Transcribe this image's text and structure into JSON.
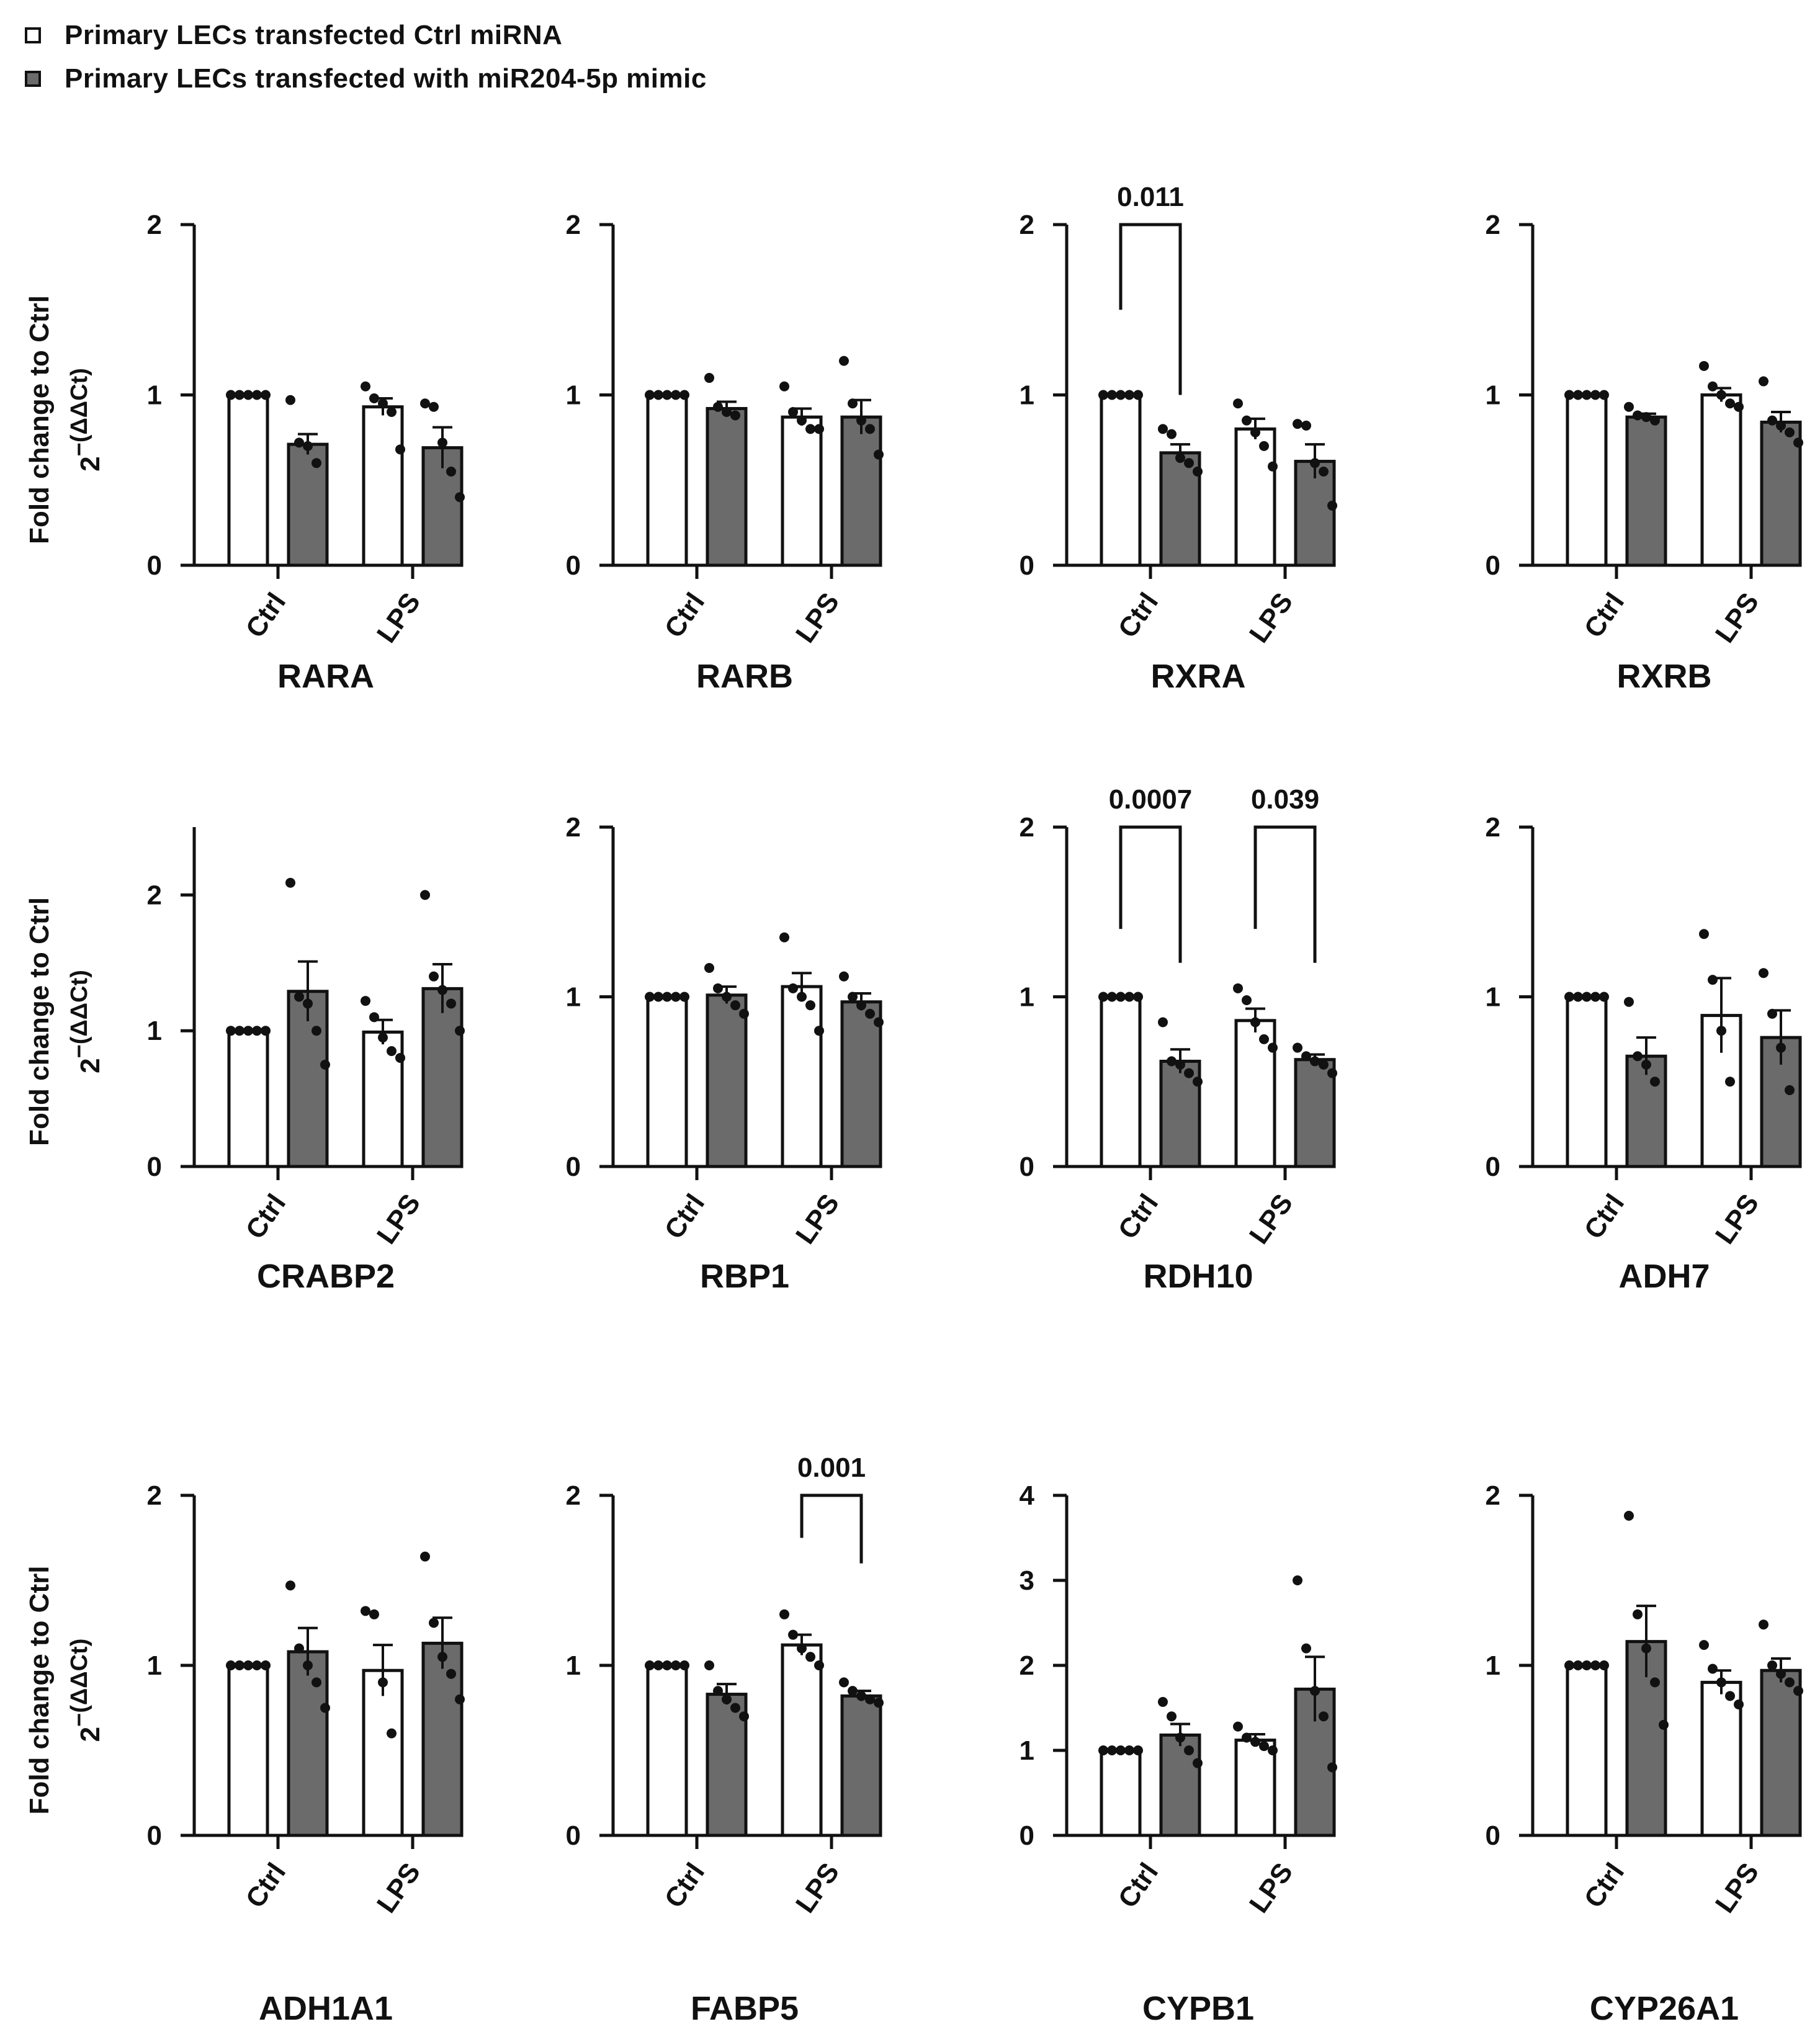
{
  "legend": {
    "items": [
      {
        "label": "Primary LECs transfected Ctrl miRNA",
        "color": "#ffffff"
      },
      {
        "label": "Primary LECs transfected with miR204-5p mimic",
        "color": "#6b6b6b"
      }
    ]
  },
  "y_label_line1": "Fold change to Ctrl",
  "y_label_base": "2",
  "y_label_exp": "−(ΔΔCt)",
  "colors": {
    "ctrl": "#ffffff",
    "mimic": "#6b6b6b",
    "ink": "#111111"
  },
  "chart_data": [
    {
      "type": "bar",
      "title": "RARA",
      "categories": [
        "Ctrl",
        "LPS"
      ],
      "ylim": [
        0,
        2
      ],
      "yticks": [
        0,
        1,
        2
      ],
      "series": [
        {
          "name": "Primary LECs transfected Ctrl miRNA",
          "values": [
            1.0,
            0.93
          ],
          "sem": [
            0,
            0.05
          ],
          "points": [
            [
              1,
              1,
              1,
              1,
              1
            ],
            [
              1.05,
              0.98,
              0.95,
              0.9,
              0.68
            ]
          ]
        },
        {
          "name": "Primary LECs transfected with miR204-5p mimic",
          "values": [
            0.71,
            0.69
          ],
          "sem": [
            0.06,
            0.12
          ],
          "points": [
            [
              0.97,
              0.72,
              0.7,
              0.6
            ],
            [
              0.95,
              0.93,
              0.72,
              0.55,
              0.4
            ]
          ]
        }
      ],
      "annotations": []
    },
    {
      "type": "bar",
      "title": "RARB",
      "categories": [
        "Ctrl",
        "LPS"
      ],
      "ylim": [
        0,
        2
      ],
      "yticks": [
        0,
        1,
        2
      ],
      "series": [
        {
          "name": "Primary LECs transfected Ctrl miRNA",
          "values": [
            1.0,
            0.87
          ],
          "sem": [
            0,
            0.05
          ],
          "points": [
            [
              1,
              1,
              1,
              1,
              1
            ],
            [
              1.05,
              0.9,
              0.85,
              0.8,
              0.8
            ]
          ]
        },
        {
          "name": "Primary LECs transfected with miR204-5p mimic",
          "values": [
            0.92,
            0.87
          ],
          "sem": [
            0.04,
            0.1
          ],
          "points": [
            [
              1.1,
              0.93,
              0.9,
              0.88
            ],
            [
              1.2,
              0.95,
              0.85,
              0.8,
              0.65
            ]
          ]
        }
      ],
      "annotations": []
    },
    {
      "type": "bar",
      "title": "RXRA",
      "categories": [
        "Ctrl",
        "LPS"
      ],
      "ylim": [
        0,
        2
      ],
      "yticks": [
        0,
        1,
        2
      ],
      "series": [
        {
          "name": "Primary LECs transfected Ctrl miRNA",
          "values": [
            1.0,
            0.8
          ],
          "sem": [
            0,
            0.06
          ],
          "points": [
            [
              1,
              1,
              1,
              1,
              1
            ],
            [
              0.95,
              0.85,
              0.78,
              0.7,
              0.58
            ]
          ]
        },
        {
          "name": "Primary LECs transfected with miR204-5p mimic",
          "values": [
            0.66,
            0.61
          ],
          "sem": [
            0.05,
            0.1
          ],
          "points": [
            [
              0.8,
              0.77,
              0.63,
              0.6,
              0.55
            ],
            [
              0.83,
              0.82,
              0.6,
              0.55,
              0.35
            ]
          ]
        }
      ],
      "annotations": [
        {
          "text": "0.011",
          "group_from": 0,
          "group_to": 0,
          "y_left": 1.5,
          "y_right": 1.0
        }
      ]
    },
    {
      "type": "bar",
      "title": "RXRB",
      "categories": [
        "Ctrl",
        "LPS"
      ],
      "ylim": [
        0,
        2
      ],
      "yticks": [
        0,
        1,
        2
      ],
      "series": [
        {
          "name": "Primary LECs transfected Ctrl miRNA",
          "values": [
            1.0,
            1.0
          ],
          "sem": [
            0,
            0.04
          ],
          "points": [
            [
              1,
              1,
              1,
              1,
              1
            ],
            [
              1.17,
              1.05,
              1.0,
              0.95,
              0.93
            ]
          ]
        },
        {
          "name": "Primary LECs transfected with miR204-5p mimic",
          "values": [
            0.87,
            0.84
          ],
          "sem": [
            0.02,
            0.06
          ],
          "points": [
            [
              0.93,
              0.88,
              0.87,
              0.85
            ],
            [
              1.08,
              0.85,
              0.82,
              0.78,
              0.72
            ]
          ]
        }
      ],
      "annotations": []
    },
    {
      "type": "bar",
      "title": "CRABP2",
      "categories": [
        "Ctrl",
        "LPS"
      ],
      "ylim": [
        0,
        2.5
      ],
      "yticks": [
        0,
        1,
        2
      ],
      "series": [
        {
          "name": "Primary LECs transfected Ctrl miRNA",
          "values": [
            1.0,
            0.99
          ],
          "sem": [
            0,
            0.09
          ],
          "points": [
            [
              1,
              1,
              1,
              1,
              1
            ],
            [
              1.22,
              1.1,
              0.95,
              0.85,
              0.8
            ]
          ]
        },
        {
          "name": "Primary LECs transfected with miR204-5p mimic",
          "values": [
            1.29,
            1.31
          ],
          "sem": [
            0.22,
            0.18
          ],
          "points": [
            [
              2.09,
              1.25,
              1.2,
              1.0,
              0.75
            ],
            [
              2.0,
              1.4,
              1.3,
              1.2,
              1.0
            ]
          ]
        }
      ],
      "annotations": []
    },
    {
      "type": "bar",
      "title": "RBP1",
      "categories": [
        "Ctrl",
        "LPS"
      ],
      "ylim": [
        0,
        2
      ],
      "yticks": [
        0,
        1,
        2
      ],
      "series": [
        {
          "name": "Primary LECs transfected Ctrl miRNA",
          "values": [
            1.0,
            1.06
          ],
          "sem": [
            0,
            0.08
          ],
          "points": [
            [
              1,
              1,
              1,
              1,
              1
            ],
            [
              1.35,
              1.05,
              1.0,
              0.95,
              0.8
            ]
          ]
        },
        {
          "name": "Primary LECs transfected with miR204-5p mimic",
          "values": [
            1.01,
            0.97
          ],
          "sem": [
            0.05,
            0.05
          ],
          "points": [
            [
              1.17,
              1.05,
              1.0,
              0.95,
              0.9
            ],
            [
              1.12,
              1.0,
              0.95,
              0.9,
              0.85
            ]
          ]
        }
      ],
      "annotations": []
    },
    {
      "type": "bar",
      "title": "RDH10",
      "categories": [
        "Ctrl",
        "LPS"
      ],
      "ylim": [
        0,
        2
      ],
      "yticks": [
        0,
        1,
        2
      ],
      "series": [
        {
          "name": "Primary LECs transfected Ctrl miRNA",
          "values": [
            1.0,
            0.86
          ],
          "sem": [
            0,
            0.07
          ],
          "points": [
            [
              1,
              1,
              1,
              1,
              1
            ],
            [
              1.05,
              0.98,
              0.85,
              0.75,
              0.7
            ]
          ]
        },
        {
          "name": "Primary LECs transfected with miR204-5p mimic",
          "values": [
            0.62,
            0.63
          ],
          "sem": [
            0.07,
            0.03
          ],
          "points": [
            [
              0.85,
              0.62,
              0.6,
              0.55,
              0.5
            ],
            [
              0.7,
              0.65,
              0.62,
              0.6,
              0.55
            ]
          ]
        }
      ],
      "annotations": [
        {
          "text": "0.0007",
          "group_from": 0,
          "group_to": 0,
          "y_left": 1.4,
          "y_right": 1.2
        },
        {
          "text": "0.039",
          "group_from": 1,
          "group_to": 1,
          "y_left": 1.4,
          "y_right": 1.2
        }
      ]
    },
    {
      "type": "bar",
      "title": "ADH7",
      "categories": [
        "Ctrl",
        "LPS"
      ],
      "ylim": [
        0,
        2
      ],
      "yticks": [
        0,
        1,
        2
      ],
      "series": [
        {
          "name": "Primary LECs transfected Ctrl miRNA",
          "values": [
            1.0,
            0.89
          ],
          "sem": [
            0,
            0.22
          ],
          "points": [
            [
              1,
              1,
              1,
              1,
              1
            ],
            [
              1.37,
              1.1,
              0.8,
              0.5
            ]
          ]
        },
        {
          "name": "Primary LECs transfected with miR204-5p mimic",
          "values": [
            0.65,
            0.76
          ],
          "sem": [
            0.11,
            0.16
          ],
          "points": [
            [
              0.97,
              0.65,
              0.6,
              0.5
            ],
            [
              1.14,
              0.9,
              0.7,
              0.45
            ]
          ]
        }
      ],
      "annotations": []
    },
    {
      "type": "bar",
      "title": "ADH1A1",
      "categories": [
        "Ctrl",
        "LPS"
      ],
      "ylim": [
        0,
        2
      ],
      "yticks": [
        0,
        1,
        2
      ],
      "series": [
        {
          "name": "Primary LECs transfected Ctrl miRNA",
          "values": [
            1.0,
            0.97
          ],
          "sem": [
            0,
            0.15
          ],
          "points": [
            [
              1,
              1,
              1,
              1,
              1
            ],
            [
              1.32,
              1.3,
              0.9,
              0.6
            ]
          ]
        },
        {
          "name": "Primary LECs transfected with miR204-5p mimic",
          "values": [
            1.08,
            1.13
          ],
          "sem": [
            0.14,
            0.15
          ],
          "points": [
            [
              1.47,
              1.1,
              1.0,
              0.9,
              0.75
            ],
            [
              1.64,
              1.25,
              1.05,
              0.95,
              0.8
            ]
          ]
        }
      ],
      "annotations": []
    },
    {
      "type": "bar",
      "title": "FABP5",
      "categories": [
        "Ctrl",
        "LPS"
      ],
      "ylim": [
        0,
        2
      ],
      "yticks": [
        0,
        1,
        2
      ],
      "series": [
        {
          "name": "Primary LECs transfected Ctrl miRNA",
          "values": [
            1.0,
            1.12
          ],
          "sem": [
            0,
            0.06
          ],
          "points": [
            [
              1,
              1,
              1,
              1,
              1
            ],
            [
              1.3,
              1.18,
              1.1,
              1.05,
              1.0
            ]
          ]
        },
        {
          "name": "Primary LECs transfected with miR204-5p mimic",
          "values": [
            0.83,
            0.82
          ],
          "sem": [
            0.06,
            0.03
          ],
          "points": [
            [
              1.0,
              0.85,
              0.8,
              0.75,
              0.7
            ],
            [
              0.9,
              0.85,
              0.82,
              0.8,
              0.78
            ]
          ]
        }
      ],
      "annotations": [
        {
          "text": "0.001",
          "group_from": 1,
          "group_to": 1,
          "y_left": 1.75,
          "y_right": 1.6
        }
      ]
    },
    {
      "type": "bar",
      "title": "CYPB1",
      "categories": [
        "Ctrl",
        "LPS"
      ],
      "ylim": [
        0,
        4
      ],
      "yticks": [
        0,
        1,
        2,
        3,
        4
      ],
      "series": [
        {
          "name": "Primary LECs transfected Ctrl miRNA",
          "values": [
            1.0,
            1.12
          ],
          "sem": [
            0,
            0.07
          ],
          "points": [
            [
              1,
              1,
              1,
              1,
              1
            ],
            [
              1.28,
              1.15,
              1.1,
              1.05,
              1.0
            ]
          ]
        },
        {
          "name": "Primary LECs transfected with miR204-5p mimic",
          "values": [
            1.18,
            1.72
          ],
          "sem": [
            0.13,
            0.38
          ],
          "points": [
            [
              1.57,
              1.4,
              1.15,
              1.0,
              0.85
            ],
            [
              3.0,
              2.2,
              1.7,
              1.4,
              0.8
            ]
          ]
        }
      ],
      "annotations": []
    },
    {
      "type": "bar",
      "title": "CYP26A1",
      "categories": [
        "Ctrl",
        "LPS"
      ],
      "ylim": [
        0,
        2
      ],
      "yticks": [
        0,
        1,
        2
      ],
      "series": [
        {
          "name": "Primary LECs transfected Ctrl miRNA",
          "values": [
            1.0,
            0.9
          ],
          "sem": [
            0,
            0.07
          ],
          "points": [
            [
              1,
              1,
              1,
              1,
              1
            ],
            [
              1.12,
              0.98,
              0.9,
              0.82,
              0.77
            ]
          ]
        },
        {
          "name": "Primary LECs transfected with miR204-5p mimic",
          "values": [
            1.14,
            0.97
          ],
          "sem": [
            0.21,
            0.07
          ],
          "points": [
            [
              1.88,
              1.3,
              1.1,
              0.9,
              0.65
            ],
            [
              1.24,
              1.0,
              0.95,
              0.9,
              0.85
            ]
          ]
        }
      ],
      "annotations": []
    }
  ]
}
